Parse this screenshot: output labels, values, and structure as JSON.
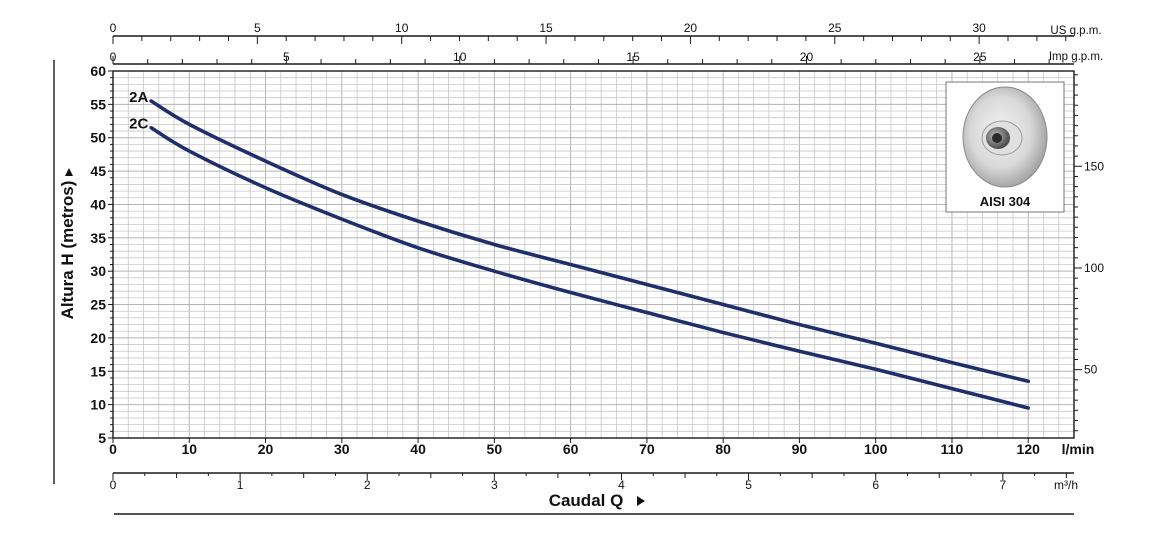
{
  "chart_data": {
    "type": "line",
    "title": "",
    "ylabel": "Altura H (metros)",
    "xlabel": "Caudal Q",
    "ylim": [
      5,
      60
    ],
    "y_ticks": [
      5,
      10,
      15,
      20,
      25,
      30,
      35,
      40,
      45,
      50,
      55,
      60
    ],
    "x_lmin": {
      "unit": "l/min",
      "lim": [
        0,
        126
      ],
      "ticks": [
        0,
        10,
        20,
        30,
        40,
        50,
        60,
        70,
        80,
        90,
        100,
        110,
        120
      ]
    },
    "x_m3h": {
      "unit": "m³/h",
      "ticks": [
        0,
        1,
        2,
        3,
        4,
        5,
        6,
        7
      ]
    },
    "x_us_gpm": {
      "unit": "US g.p.m.",
      "ticks": [
        0,
        5,
        10,
        15,
        20,
        25,
        30
      ]
    },
    "x_imp_gpm": {
      "unit": "Imp g.p.m.",
      "ticks": [
        0,
        5,
        10,
        15,
        20,
        25
      ]
    },
    "right_axis_ticks": [
      50,
      100,
      150
    ],
    "grid": true,
    "series": [
      {
        "name": "2A",
        "color": "#1f2f6b",
        "x": [
          5,
          10,
          20,
          30,
          40,
          50,
          60,
          70,
          80,
          90,
          100,
          110,
          120
        ],
        "y": [
          55.5,
          52,
          46.5,
          41.5,
          37.5,
          34,
          31,
          28,
          25,
          22,
          19.2,
          16.3,
          13.5
        ]
      },
      {
        "name": "2C",
        "color": "#1f2f6b",
        "x": [
          5,
          10,
          20,
          30,
          40,
          50,
          60,
          70,
          80,
          90,
          100,
          110,
          120
        ],
        "y": [
          51.5,
          48,
          42.5,
          37.8,
          33.5,
          30,
          26.8,
          23.8,
          20.8,
          18,
          15.3,
          12.4,
          9.5
        ]
      }
    ]
  },
  "inset": {
    "caption": "AISI 304",
    "icon": "impeller-icon"
  },
  "colors": {
    "curve": "#1f2f6b",
    "grid": "#c8c8c8",
    "axis": "#1a1a1a"
  }
}
